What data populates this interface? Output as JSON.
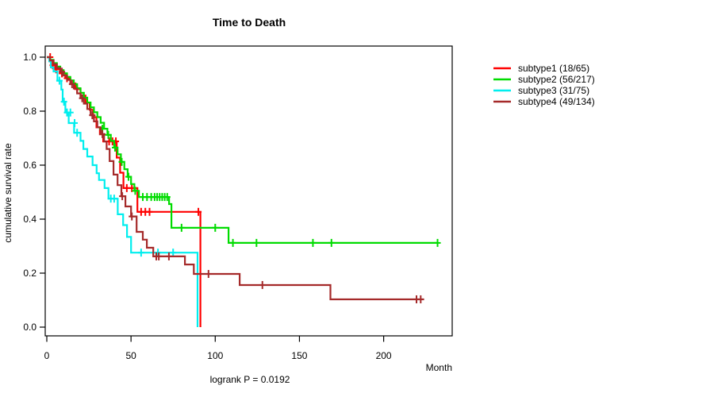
{
  "window": {
    "background": "#ffffff"
  },
  "chart_data": {
    "type": "line",
    "subtype": "kaplan-meier-survival-steps",
    "title": "Time to Death",
    "xlabel": "Month",
    "ylabel": "cumulative survival rate",
    "footer": "logrank P = 0.0192",
    "axes": {
      "x_ticks": [
        0,
        50,
        100,
        150,
        200
      ],
      "y_tick_labels": [
        "0.0",
        "0.2",
        "0.4",
        "0.6",
        "0.8",
        "1.0"
      ],
      "xlim": [
        0,
        240
      ],
      "ylim": [
        0,
        1
      ],
      "grid": false,
      "box": true
    },
    "legend": {
      "position": "top-right-outside",
      "entries": [
        {
          "label": "subtype1 (18/65)",
          "color": "#FF0000"
        },
        {
          "label": "subtype2 (56/217)",
          "color": "#00DC00"
        },
        {
          "label": "subtype3 (31/75)",
          "color": "#00EEEE"
        },
        {
          "label": "subtype4 (49/134)",
          "color": "#A52A2A"
        }
      ]
    },
    "series": [
      {
        "name": "subtype1",
        "color": "#FF0000",
        "steps": [
          [
            0,
            1.0
          ],
          [
            1.5,
            0.985
          ],
          [
            3,
            0.97
          ],
          [
            5,
            0.955
          ],
          [
            8,
            0.94
          ],
          [
            11,
            0.922
          ],
          [
            14,
            0.903
          ],
          [
            17,
            0.882
          ],
          [
            20,
            0.858
          ],
          [
            23,
            0.832
          ],
          [
            25.5,
            0.805
          ],
          [
            27.5,
            0.778
          ],
          [
            29.5,
            0.74
          ],
          [
            31.5,
            0.714
          ],
          [
            33.5,
            0.688
          ],
          [
            41.5,
            0.628
          ],
          [
            43.5,
            0.572
          ],
          [
            45.5,
            0.515
          ],
          [
            53.8,
            0.427
          ],
          [
            91.2,
            0.0
          ]
        ],
        "censors": [
          [
            2,
            1.0
          ],
          [
            3.5,
            0.97
          ],
          [
            5.5,
            0.955
          ],
          [
            9,
            0.94
          ],
          [
            12,
            0.922
          ],
          [
            18,
            0.882
          ],
          [
            37,
            0.688
          ],
          [
            39,
            0.688
          ],
          [
            41,
            0.688
          ],
          [
            47.5,
            0.515
          ],
          [
            50.5,
            0.515
          ],
          [
            56,
            0.427
          ],
          [
            58.5,
            0.427
          ],
          [
            61,
            0.427
          ],
          [
            90,
            0.427
          ]
        ],
        "end_x": 91.2
      },
      {
        "name": "subtype2",
        "color": "#00DC00",
        "steps": [
          [
            0,
            1.0
          ],
          [
            2,
            0.99
          ],
          [
            4,
            0.978
          ],
          [
            6,
            0.965
          ],
          [
            8,
            0.952
          ],
          [
            10,
            0.94
          ],
          [
            12,
            0.927
          ],
          [
            14,
            0.914
          ],
          [
            16,
            0.9
          ],
          [
            18,
            0.885
          ],
          [
            20,
            0.868
          ],
          [
            22,
            0.85
          ],
          [
            24,
            0.832
          ],
          [
            26,
            0.814
          ],
          [
            28,
            0.796
          ],
          [
            30,
            0.778
          ],
          [
            32,
            0.757
          ],
          [
            34,
            0.735
          ],
          [
            36,
            0.712
          ],
          [
            38,
            0.69
          ],
          [
            40,
            0.665
          ],
          [
            42,
            0.64
          ],
          [
            44,
            0.612
          ],
          [
            46,
            0.585
          ],
          [
            48,
            0.557
          ],
          [
            50,
            0.53
          ],
          [
            52,
            0.505
          ],
          [
            54.7,
            0.482
          ],
          [
            72.6,
            0.456
          ],
          [
            74,
            0.368
          ],
          [
            107.9,
            0.312
          ]
        ],
        "censors": [
          [
            33,
            0.735
          ],
          [
            36.5,
            0.712
          ],
          [
            40.5,
            0.665
          ],
          [
            44.5,
            0.612
          ],
          [
            48.5,
            0.557
          ],
          [
            52.5,
            0.505
          ],
          [
            57,
            0.482
          ],
          [
            59.5,
            0.482
          ],
          [
            62,
            0.482
          ],
          [
            64,
            0.482
          ],
          [
            65.5,
            0.482
          ],
          [
            67,
            0.482
          ],
          [
            68.5,
            0.482
          ],
          [
            70,
            0.482
          ],
          [
            71.5,
            0.482
          ],
          [
            80,
            0.368
          ],
          [
            100,
            0.368
          ],
          [
            110.5,
            0.312
          ],
          [
            124.5,
            0.312
          ],
          [
            158,
            0.312
          ],
          [
            169,
            0.312
          ],
          [
            232,
            0.312
          ]
        ],
        "end_x": 232
      },
      {
        "name": "subtype3",
        "color": "#00EEEE",
        "steps": [
          [
            0,
            1.0
          ],
          [
            1.5,
            0.985
          ],
          [
            2.4,
            0.962
          ],
          [
            4,
            0.947
          ],
          [
            6.3,
            0.913
          ],
          [
            8.6,
            0.88
          ],
          [
            9.4,
            0.835
          ],
          [
            11,
            0.795
          ],
          [
            13,
            0.756
          ],
          [
            16.2,
            0.72
          ],
          [
            20,
            0.69
          ],
          [
            21.7,
            0.66
          ],
          [
            24,
            0.632
          ],
          [
            27.2,
            0.6
          ],
          [
            29.6,
            0.57
          ],
          [
            31,
            0.545
          ],
          [
            34.3,
            0.515
          ],
          [
            36.6,
            0.476
          ],
          [
            42.1,
            0.418
          ],
          [
            45.3,
            0.378
          ],
          [
            47.6,
            0.334
          ],
          [
            50,
            0.276
          ],
          [
            89.5,
            0.0
          ]
        ],
        "censors": [
          [
            7.5,
            0.913
          ],
          [
            10.2,
            0.835
          ],
          [
            12,
            0.795
          ],
          [
            14,
            0.795
          ],
          [
            16.5,
            0.756
          ],
          [
            18,
            0.72
          ],
          [
            38,
            0.476
          ],
          [
            40,
            0.476
          ],
          [
            56,
            0.276
          ],
          [
            66,
            0.276
          ],
          [
            75,
            0.276
          ]
        ],
        "end_x": 89.5
      },
      {
        "name": "subtype4",
        "color": "#A52A2A",
        "steps": [
          [
            0,
            1.0
          ],
          [
            2,
            0.988
          ],
          [
            4,
            0.974
          ],
          [
            6,
            0.96
          ],
          [
            8,
            0.946
          ],
          [
            10,
            0.932
          ],
          [
            12,
            0.916
          ],
          [
            14,
            0.9
          ],
          [
            16,
            0.884
          ],
          [
            18,
            0.866
          ],
          [
            20,
            0.848
          ],
          [
            22,
            0.828
          ],
          [
            24,
            0.808
          ],
          [
            26,
            0.785
          ],
          [
            28,
            0.762
          ],
          [
            30,
            0.74
          ],
          [
            32,
            0.715
          ],
          [
            34,
            0.688
          ],
          [
            35.5,
            0.66
          ],
          [
            37.3,
            0.615
          ],
          [
            39.6,
            0.565
          ],
          [
            42,
            0.526
          ],
          [
            44.3,
            0.485
          ],
          [
            46.7,
            0.447
          ],
          [
            50,
            0.41
          ],
          [
            53.3,
            0.353
          ],
          [
            57,
            0.324
          ],
          [
            59.4,
            0.294
          ],
          [
            63.2,
            0.262
          ],
          [
            82,
            0.232
          ],
          [
            87.3,
            0.197
          ],
          [
            114.5,
            0.156
          ],
          [
            168.4,
            0.103
          ]
        ],
        "censors": [
          [
            9,
            0.946
          ],
          [
            15,
            0.9
          ],
          [
            21,
            0.848
          ],
          [
            27,
            0.785
          ],
          [
            33,
            0.715
          ],
          [
            44.8,
            0.485
          ],
          [
            50.5,
            0.41
          ],
          [
            65,
            0.262
          ],
          [
            66.5,
            0.262
          ],
          [
            72.5,
            0.262
          ],
          [
            96,
            0.197
          ],
          [
            128,
            0.156
          ],
          [
            219.5,
            0.103
          ],
          [
            222,
            0.103
          ]
        ],
        "end_x": 224
      }
    ]
  }
}
